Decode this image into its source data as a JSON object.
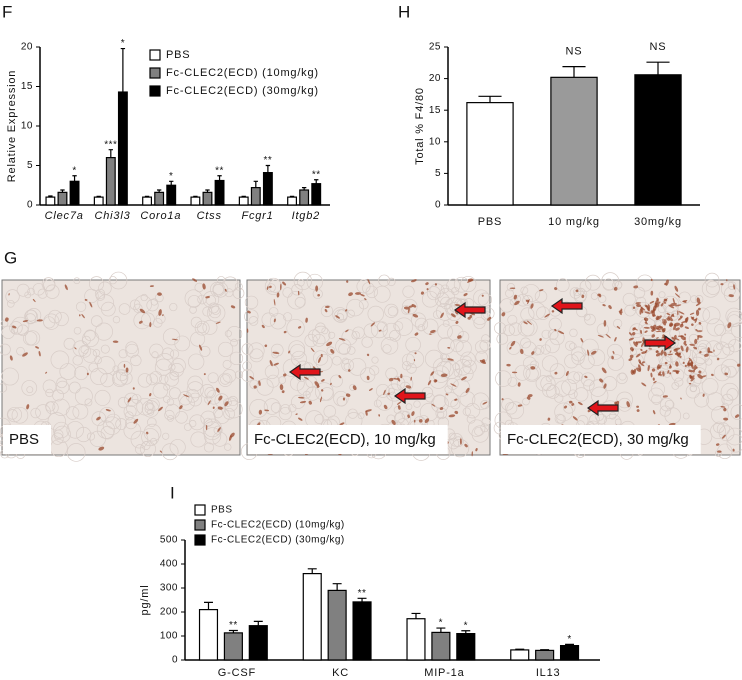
{
  "panels": [
    "F",
    "H",
    "G",
    "I"
  ],
  "images": [
    {
      "label": "PBS"
    },
    {
      "label": "Fc-CLEC2(ECD), 10 mg/kg"
    },
    {
      "label": "Fc-CLEC2(ECD), 30 mg/kg"
    }
  ],
  "chart_data": [
    {
      "type": "bar",
      "y_label": "Relative Expression",
      "italic_categories": true,
      "categories": [
        "Clec7a",
        "Chi3l3",
        "Coro1a",
        "Ctss",
        "Fcgr1",
        "Itgb2"
      ],
      "series": [
        {
          "name": "PBS",
          "color": "#ffffff",
          "values": [
            1.0,
            1.0,
            1.0,
            1.0,
            1.0,
            1.0
          ],
          "errors": [
            0.15,
            0.1,
            0.1,
            0.1,
            0.1,
            0.1
          ],
          "stars": [
            null,
            null,
            null,
            null,
            null,
            null
          ]
        },
        {
          "name": "Fc-CLEC2(ECD) (10mg/kg)",
          "color": "#808080",
          "values": [
            1.6,
            6.0,
            1.6,
            1.6,
            2.2,
            1.9
          ],
          "errors": [
            0.3,
            1.0,
            0.3,
            0.3,
            0.8,
            0.3
          ],
          "stars": [
            null,
            "***",
            null,
            null,
            null,
            null
          ]
        },
        {
          "name": "Fc-CLEC2(ECD) (30mg/kg)",
          "color": "#000000",
          "values": [
            3.0,
            14.3,
            2.5,
            3.1,
            4.1,
            2.7
          ],
          "errors": [
            0.7,
            5.5,
            0.5,
            0.6,
            0.9,
            0.5
          ],
          "stars": [
            "*",
            "*",
            "*",
            "**",
            "**",
            "**"
          ]
        }
      ],
      "ylim": [
        0,
        20
      ],
      "yticks": [
        0,
        5,
        10,
        15,
        20
      ]
    },
    {
      "type": "bar",
      "y_label": "Total % F4/80",
      "categories": [
        "PBS",
        "10 mg/kg",
        "30mg/kg"
      ],
      "values": [
        16.2,
        20.2,
        20.6
      ],
      "errors": [
        1.0,
        1.7,
        2.0
      ],
      "colors": [
        "#ffffff",
        "#9a9a9a",
        "#000000"
      ],
      "annotations": [
        null,
        "NS",
        "NS"
      ],
      "ylim": [
        0,
        25
      ],
      "yticks": [
        0,
        5,
        10,
        15,
        20,
        25
      ]
    },
    {
      "type": "bar",
      "y_label": "pg/ml",
      "categories": [
        "G-CSF",
        "KC",
        "MIP-1a",
        "IL13"
      ],
      "series": [
        {
          "name": "PBS",
          "color": "#ffffff",
          "values": [
            210,
            360,
            172,
            42
          ],
          "errors": [
            30,
            20,
            22,
            3
          ],
          "stars": [
            null,
            null,
            null,
            null
          ]
        },
        {
          "name": "Fc-CLEC2(ECD) (10mg/kg)",
          "color": "#808080",
          "values": [
            113,
            290,
            115,
            40
          ],
          "errors": [
            10,
            28,
            18,
            3
          ],
          "stars": [
            "**",
            null,
            "*",
            null
          ]
        },
        {
          "name": "Fc-CLEC2(ECD) (30mg/kg)",
          "color": "#000000",
          "values": [
            143,
            242,
            110,
            60
          ],
          "errors": [
            18,
            15,
            12,
            5
          ],
          "stars": [
            null,
            "**",
            "*",
            "*"
          ]
        }
      ],
      "ylim": [
        0,
        500
      ],
      "yticks": [
        0,
        100,
        200,
        300,
        400,
        500
      ]
    }
  ]
}
